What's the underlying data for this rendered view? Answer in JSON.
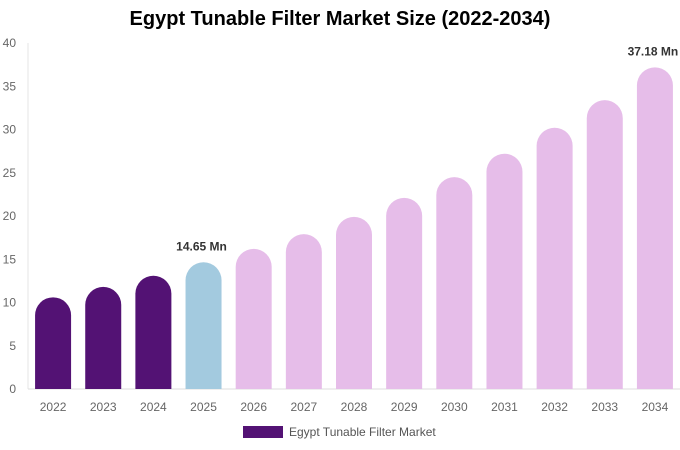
{
  "chart_data": {
    "type": "bar",
    "title": "Egypt Tunable Filter Market Size (2022-2034)",
    "xlabel": "",
    "ylabel": "",
    "ylim": [
      0,
      40
    ],
    "yticks": [
      0,
      5,
      10,
      15,
      20,
      25,
      30,
      35,
      40
    ],
    "grid": false,
    "legend_position": "bottom",
    "categories": [
      "2022",
      "2023",
      "2024",
      "2025",
      "2026",
      "2027",
      "2028",
      "2029",
      "2030",
      "2031",
      "2032",
      "2033",
      "2034"
    ],
    "series": [
      {
        "name": "Egypt Tunable Filter Market",
        "values": [
          10.6,
          11.8,
          13.1,
          14.65,
          16.2,
          17.9,
          19.9,
          22.1,
          24.5,
          27.2,
          30.2,
          33.4,
          37.18
        ]
      }
    ],
    "bar_colors": [
      "#531274",
      "#531274",
      "#531274",
      "#a3cadf",
      "#e6bde9",
      "#e6bde9",
      "#e6bde9",
      "#e6bde9",
      "#e6bde9",
      "#e6bde9",
      "#e6bde9",
      "#e6bde9",
      "#e6bde9"
    ],
    "annotations": [
      {
        "category": "2025",
        "text": "14.65 Mn"
      },
      {
        "category": "2034",
        "text": "37.18 Mn"
      }
    ]
  },
  "legend": {
    "label": "Egypt Tunable Filter Market",
    "color": "#531274"
  }
}
